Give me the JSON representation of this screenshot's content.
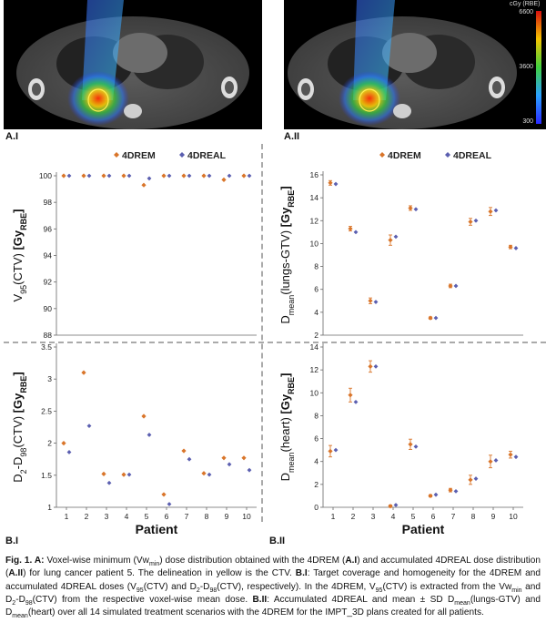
{
  "figure": {
    "panel_labels": {
      "a1": "A.I",
      "a2": "A.II",
      "b1": "B.I",
      "b2": "B.II"
    },
    "colorbar": {
      "title": "cGy (RBE)",
      "ticks": [
        "6600",
        "3600",
        "300"
      ]
    },
    "legend": {
      "series1": "4DREM",
      "series2": "4DREAL"
    },
    "xlabel": "Patient",
    "colors": {
      "4DREM": "#d9752a",
      "4DREAL": "#5b5fb0",
      "divider": "#aaaaaa"
    }
  },
  "chart_data": [
    {
      "type": "scatter",
      "panel": "B.I top",
      "ylabel": "V95(CTV) [GyRBE]",
      "ylabel_main": "V",
      "ylabel_sub": "95",
      "ylabel_rest": "(CTV) ",
      "ylabel_bold": "[Gy",
      "ylabel_bold_sub": "RBE",
      "ylabel_bold_end": "]",
      "x": [
        1,
        2,
        3,
        4,
        5,
        6,
        7,
        8,
        9,
        10
      ],
      "ylim": [
        88,
        100
      ],
      "yticks": [
        88,
        90,
        92,
        94,
        96,
        98,
        100
      ],
      "series": [
        {
          "name": "4DREM",
          "values": [
            100,
            100,
            100,
            100,
            99.3,
            100,
            100,
            100,
            99.7,
            100
          ]
        },
        {
          "name": "4DREAL",
          "values": [
            100,
            100,
            100,
            100,
            99.8,
            100,
            100,
            100,
            100,
            100
          ]
        }
      ]
    },
    {
      "type": "scatter",
      "panel": "B.I bottom",
      "ylabel": "D2-D98(CTV) [GyRBE]",
      "ylabel_main": "D",
      "ylabel_sub": "2",
      "ylabel_mid": "-D",
      "ylabel_sub2": "98",
      "ylabel_rest": "(CTV) ",
      "ylabel_bold": "[Gy",
      "ylabel_bold_sub": "RBE",
      "ylabel_bold_end": "]",
      "x": [
        1,
        2,
        3,
        4,
        5,
        6,
        7,
        8,
        9,
        10
      ],
      "ylim": [
        1,
        3.5
      ],
      "yticks": [
        1,
        1.5,
        2,
        2.5,
        3,
        3.5
      ],
      "series": [
        {
          "name": "4DREM",
          "values": [
            2.0,
            3.1,
            1.52,
            1.51,
            2.42,
            1.2,
            1.88,
            1.53,
            1.77,
            1.77
          ]
        },
        {
          "name": "4DREAL",
          "values": [
            1.86,
            2.27,
            1.38,
            1.51,
            2.13,
            1.05,
            1.75,
            1.51,
            1.67,
            1.58
          ]
        }
      ]
    },
    {
      "type": "scatter",
      "panel": "B.II top",
      "ylabel": "Dmean(lungs-GTV) [GyRBE]",
      "ylabel_main": "D",
      "ylabel_sub": "mean",
      "ylabel_rest": "(lungs-GTV) ",
      "ylabel_bold": "[Gy",
      "ylabel_bold_sub": "RBE",
      "ylabel_bold_end": "]",
      "x": [
        1,
        2,
        3,
        4,
        5,
        6,
        7,
        8,
        9,
        10
      ],
      "ylim": [
        2,
        16
      ],
      "yticks": [
        2,
        4,
        6,
        8,
        10,
        12,
        14,
        16
      ],
      "series": [
        {
          "name": "4DREM",
          "values": [
            15.3,
            11.3,
            5.0,
            10.3,
            13.1,
            3.5,
            6.3,
            11.9,
            12.8,
            9.7
          ]
        },
        {
          "name": "4DREAL",
          "values": [
            15.2,
            11.0,
            4.9,
            10.6,
            13.0,
            3.5,
            6.3,
            12.0,
            12.9,
            9.6
          ]
        }
      ],
      "sd_4DREM": [
        0.2,
        0.2,
        0.25,
        0.45,
        0.2,
        0.1,
        0.15,
        0.3,
        0.35,
        0.15
      ]
    },
    {
      "type": "scatter",
      "panel": "B.II bottom",
      "ylabel": "Dmean(heart) [GyRBE]",
      "ylabel_main": "D",
      "ylabel_sub": "mean",
      "ylabel_rest": "(heart) ",
      "ylabel_bold": "[Gy",
      "ylabel_bold_sub": "RBE",
      "ylabel_bold_end": "]",
      "x": [
        1,
        2,
        3,
        4,
        5,
        6,
        7,
        8,
        9,
        10
      ],
      "ylim": [
        0,
        14
      ],
      "yticks": [
        0,
        2,
        4,
        6,
        8,
        10,
        12,
        14
      ],
      "series": [
        {
          "name": "4DREM",
          "values": [
            4.9,
            9.8,
            12.3,
            0.1,
            5.5,
            1.0,
            1.5,
            2.4,
            4.0,
            4.6
          ]
        },
        {
          "name": "4DREAL",
          "values": [
            5.0,
            9.2,
            12.3,
            0.2,
            5.3,
            1.1,
            1.4,
            2.5,
            4.1,
            4.4
          ]
        }
      ],
      "sd_4DREM": [
        0.5,
        0.6,
        0.5,
        0.1,
        0.45,
        0.1,
        0.15,
        0.4,
        0.55,
        0.3
      ]
    }
  ],
  "caption": {
    "lead": "Fig. 1. A:",
    "t1": " Voxel-wise minimum (Vw",
    "t1_sub": "min",
    "t2": ") dose distribution obtained with the 4DREM (",
    "a1": "A.I",
    "t3": ") and accumulated 4DREAL dose distribution (",
    "a2": "A.II",
    "t4": ") for lung cancer patient 5. The delineation in yellow is the CTV. ",
    "b1": "B.I",
    "t5": ": Target coverage and homogeneity for the 4DREM and accumulated 4DREAL doses (V",
    "t5_sub": "95",
    "t6": "(CTV) and D",
    "t6_sub": "2",
    "t7": "-D",
    "t7_sub": "98",
    "t8": "(CTV), respectively). In the 4DREM, V",
    "t8_sub": "95",
    "t9": "(CTV) is extracted from the Vw",
    "t9_sub": "min",
    "t10": " and D",
    "t10_sub": "2",
    "t11": "-D",
    "t11_sub": "98",
    "t12": "(CTV) from the respective voxel-wise mean dose. ",
    "b2": "B.II",
    "t13": ": Accumulated 4DREAL and mean ± SD D",
    "t13_sub": "mean",
    "t14": "(lungs-GTV) and D",
    "t14_sub": "mean",
    "t15": "(heart) over all 14 simulated treatment scenarios with the 4DREM for the IMPT_3D plans created for all patients."
  }
}
